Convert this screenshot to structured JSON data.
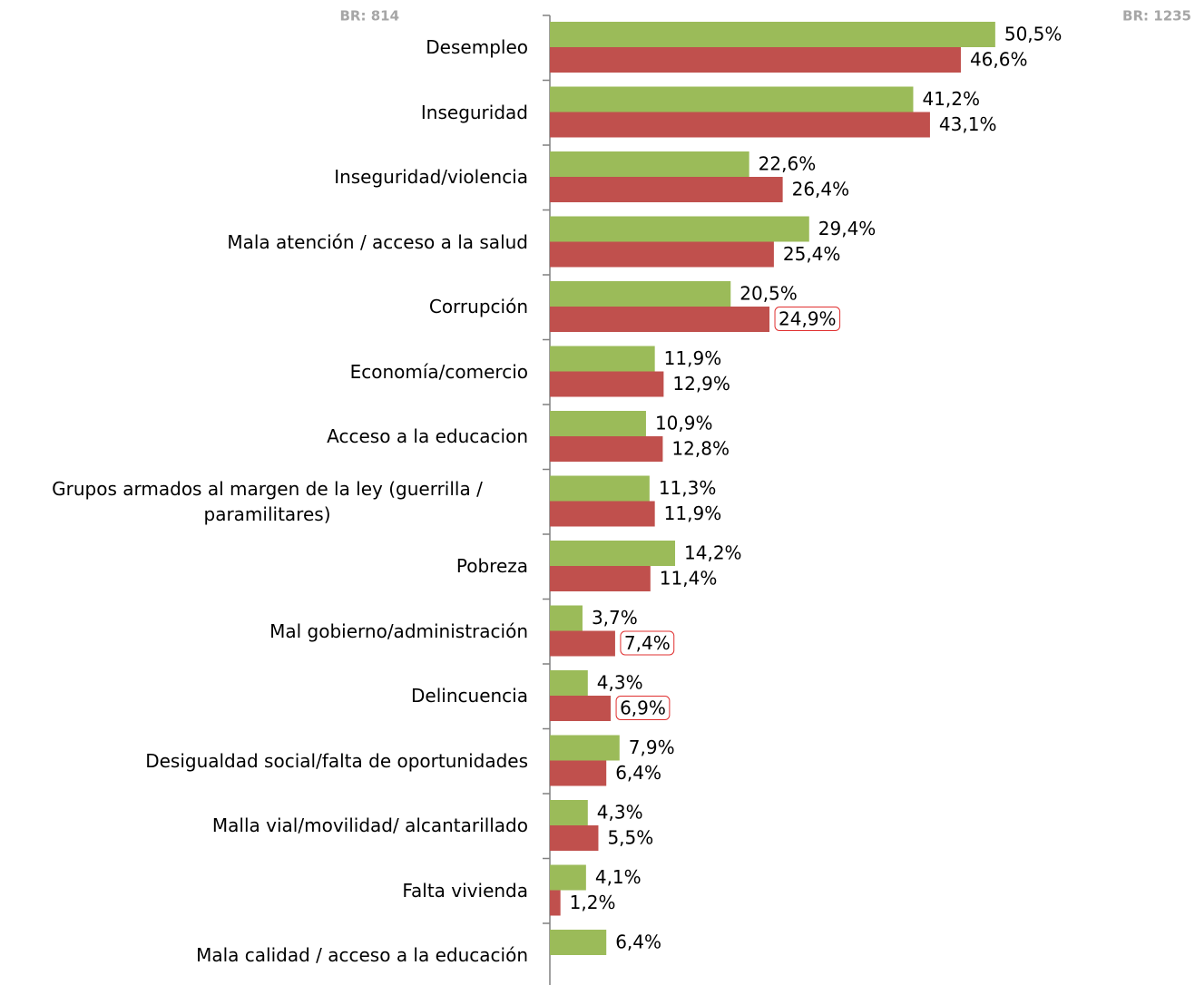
{
  "chart_data": {
    "type": "bar",
    "orientation": "horizontal",
    "annotations": [
      "BR: 814",
      "BR: 1235"
    ],
    "categories": [
      "Desempleo",
      "Inseguridad",
      "Inseguridad/violencia",
      "Mala atención / acceso a la salud",
      "Corrupción",
      "Economía/comercio",
      "Acceso a la educacion",
      "Grupos armados al margen de la ley (guerrilla / paramilitares)",
      "Pobreza",
      "Mal gobierno/administración",
      "Delincuencia",
      "Desigualdad social/falta de oportunidades",
      "Malla vial/movilidad/ alcantarillado",
      "Falta vivienda",
      "Mala calidad / acceso a la educación"
    ],
    "series": [
      {
        "color": "#9bbb59",
        "values": [
          50.5,
          41.2,
          22.6,
          29.4,
          20.5,
          11.9,
          10.9,
          11.3,
          14.2,
          3.7,
          4.3,
          7.9,
          4.3,
          4.1,
          6.4
        ],
        "value_labels": [
          "50,5%",
          "41,2%",
          "22,6%",
          "29,4%",
          "20,5%",
          "11,9%",
          "10,9%",
          "11,3%",
          "14,2%",
          "3,7%",
          "4,3%",
          "7,9%",
          "4,3%",
          "4,1%",
          "6,4%"
        ]
      },
      {
        "color": "#c0504d",
        "values": [
          46.6,
          43.1,
          26.4,
          25.4,
          24.9,
          12.9,
          12.8,
          11.9,
          11.4,
          7.4,
          6.9,
          6.4,
          5.5,
          1.2,
          null
        ],
        "value_labels": [
          "46,6%",
          "43,1%",
          "26,4%",
          "25,4%",
          "24,9%",
          "12,9%",
          "12,8%",
          "11,9%",
          "11,4%",
          "7,4%",
          "6,9%",
          "6,4%",
          "5,5%",
          "1,2%",
          null
        ],
        "highlight": [
          4,
          9,
          10
        ]
      }
    ]
  }
}
